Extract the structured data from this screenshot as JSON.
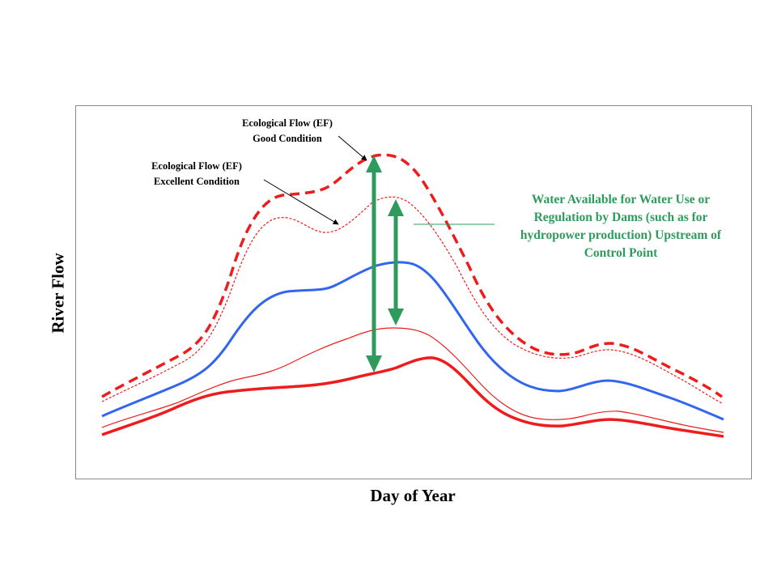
{
  "title": "",
  "xlabel": "Day of Year",
  "ylabel": "River Flow",
  "annotations": {
    "good_condition": [
      "Ecological Flow (EF)",
      "Good Condition"
    ],
    "excellent_condition": [
      "Ecological Flow (EF)",
      "Excellent Condition"
    ],
    "water_available": [
      "Water Available for Water Use or",
      "Regulation by Dams (such as for",
      "hydropower production) Upstream of",
      "Control Point"
    ]
  },
  "colors": {
    "red": "#ee1c1c",
    "blue": "#3366ee",
    "green": "#2e9b5c",
    "frame": "#888888"
  }
}
